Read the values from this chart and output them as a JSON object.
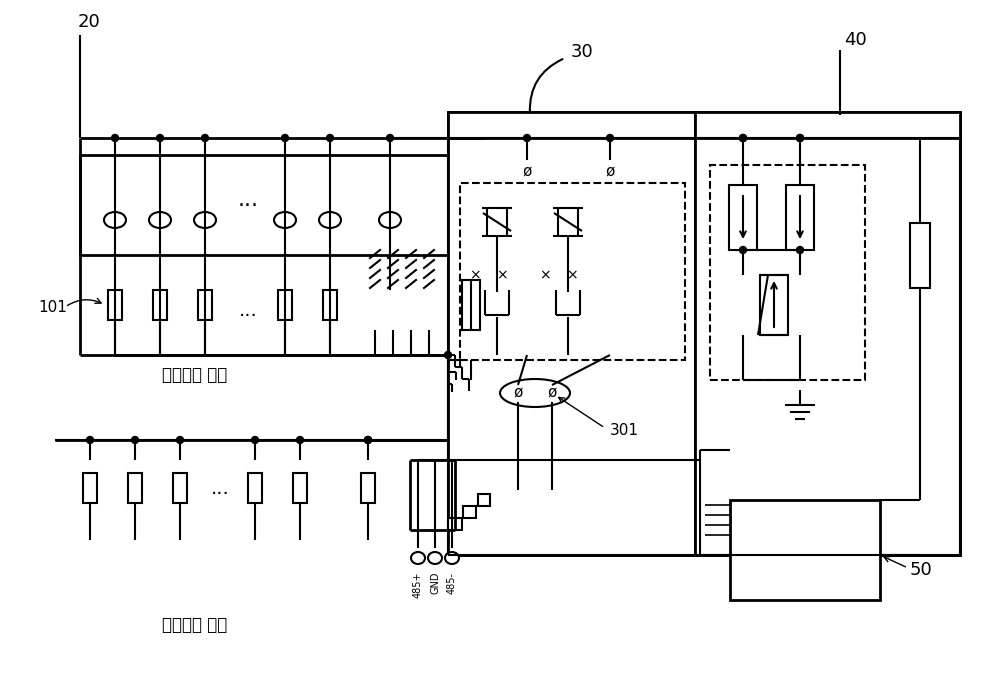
{
  "bg_color": "#ffffff",
  "line_color": "#000000",
  "label_20": "20",
  "label_30": "30",
  "label_40": "40",
  "label_50": "50",
  "label_101": "101",
  "label_301": "301",
  "label_pos": "组串输入 正极",
  "label_neg": "组串输入 负极",
  "label_485p": "485+",
  "label_gnd": "GND",
  "label_485m": "485-",
  "figsize": [
    10.0,
    6.89
  ],
  "dpi": 100
}
